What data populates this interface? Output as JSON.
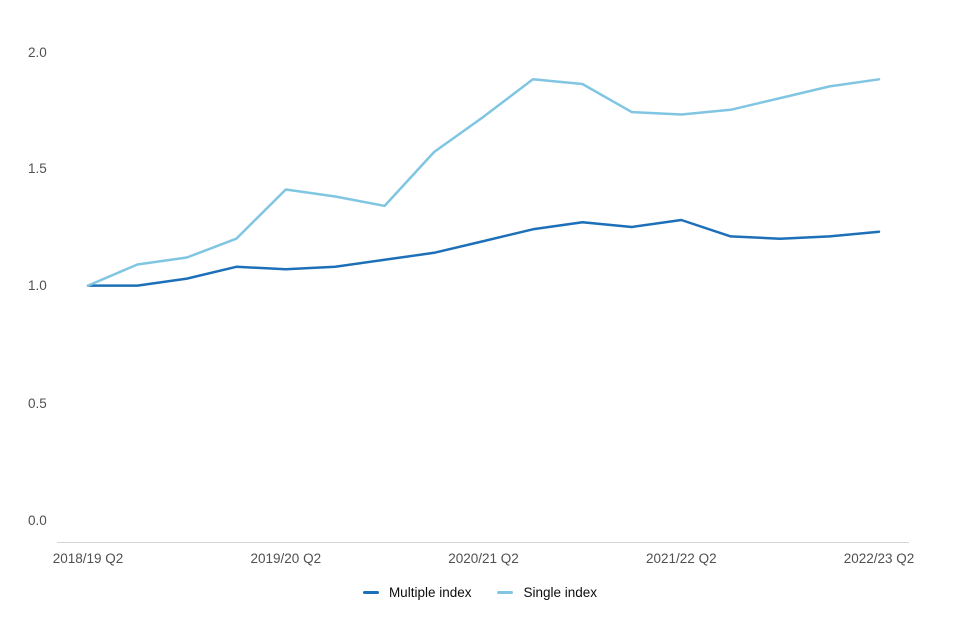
{
  "chart_data": {
    "type": "line",
    "title": "",
    "xlabel": "",
    "ylabel": "",
    "points_per_series": 17,
    "x_tick_labels": [
      "2018/19 Q2",
      "2019/20 Q2",
      "2020/21 Q2",
      "2021/22 Q2",
      "2022/23 Q2"
    ],
    "x_tick_indices": [
      0,
      4,
      8,
      12,
      16
    ],
    "y_tick_labels": [
      "0.0",
      "0.5",
      "1.0",
      "1.5",
      "2.0"
    ],
    "ylim": [
      0.0,
      2.12
    ],
    "grid": false,
    "legend_position": "bottom-center",
    "axis_color": "#d4d4d4",
    "tick_label_color": "#505050",
    "legend_text_color": "#0b0c0c",
    "series": [
      {
        "name": "Multiple index",
        "color": "#1d70b8",
        "values": [
          1.0,
          1.0,
          1.03,
          1.08,
          1.07,
          1.08,
          1.11,
          1.14,
          1.19,
          1.24,
          1.27,
          1.25,
          1.28,
          1.21,
          1.2,
          1.21,
          1.23
        ]
      },
      {
        "name": "Single index",
        "color": "#80c6e3",
        "values": [
          1.0,
          1.09,
          1.12,
          1.2,
          1.41,
          1.38,
          1.34,
          1.57,
          1.72,
          1.88,
          1.86,
          1.74,
          1.73,
          1.75,
          1.8,
          1.85,
          1.88
        ]
      }
    ]
  }
}
